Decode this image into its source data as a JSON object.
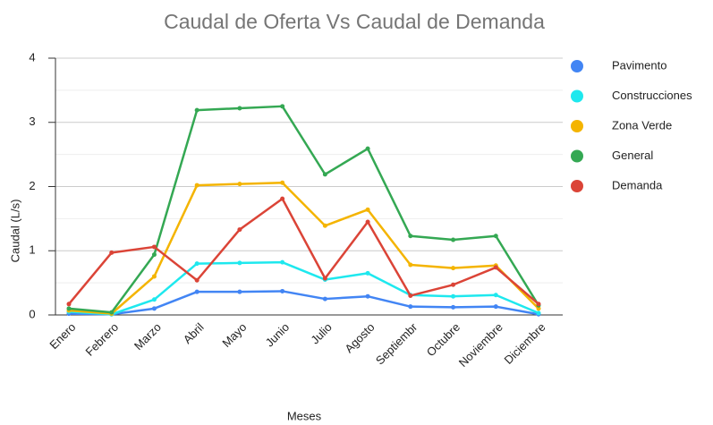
{
  "chart_data": {
    "type": "line",
    "title": "Caudal de Oferta Vs Caudal de Demanda",
    "x_label": "Meses",
    "y_label": "Caudal (L/s)",
    "categories": [
      "Enero",
      "Febrero",
      "Marzo",
      "Abril",
      "Mayo",
      "Junio",
      "Julio",
      "Agosto",
      "Septiembr",
      "Octubre",
      "Noviembre",
      "Diciembre"
    ],
    "series": [
      {
        "name": "Pavimento",
        "color": "#4285f4",
        "values": [
          0.02,
          0.01,
          0.1,
          0.36,
          0.36,
          0.37,
          0.25,
          0.29,
          0.13,
          0.12,
          0.13,
          0.01
        ]
      },
      {
        "name": "Construcciones",
        "color": "#1ee8ee",
        "values": [
          0.05,
          0.01,
          0.24,
          0.8,
          0.81,
          0.82,
          0.55,
          0.65,
          0.31,
          0.29,
          0.31,
          0.03
        ]
      },
      {
        "name": "Zona Verde",
        "color": "#f4b400",
        "values": [
          0.07,
          0.02,
          0.6,
          2.02,
          2.04,
          2.06,
          1.39,
          1.64,
          0.78,
          0.73,
          0.77,
          0.1
        ]
      },
      {
        "name": "General",
        "color": "#34a853",
        "values": [
          0.1,
          0.04,
          0.94,
          3.19,
          3.22,
          3.25,
          2.19,
          2.59,
          1.23,
          1.17,
          1.23,
          0.15
        ]
      },
      {
        "name": "Demanda",
        "color": "#db4437",
        "values": [
          0.17,
          0.97,
          1.06,
          0.54,
          1.33,
          1.81,
          0.57,
          1.45,
          0.3,
          0.47,
          0.74,
          0.17
        ]
      }
    ],
    "ylim": [
      0,
      4
    ],
    "yticks": [
      0,
      1,
      2,
      3,
      4
    ],
    "minor_yticks": [
      0.5,
      1.5,
      2.5,
      3.5
    ],
    "grid": true,
    "legend": "right"
  }
}
